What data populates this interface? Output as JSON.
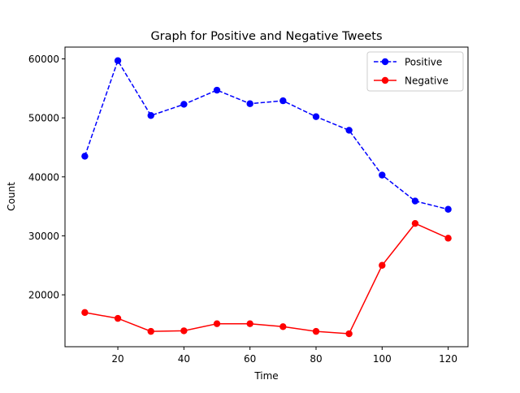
{
  "chart_data": {
    "type": "line",
    "title": "Graph for Positive and Negative Tweets",
    "xlabel": "Time",
    "ylabel": "Count",
    "xlim": [
      4,
      126
    ],
    "ylim": [
      11200,
      62000
    ],
    "xticks": [
      20,
      40,
      60,
      80,
      100,
      120
    ],
    "yticks": [
      20000,
      30000,
      40000,
      50000,
      60000
    ],
    "x": [
      10,
      20,
      30,
      40,
      50,
      60,
      70,
      80,
      90,
      100,
      110,
      120
    ],
    "grid": false,
    "legend_position": "top-right",
    "series": [
      {
        "name": "Positive",
        "color": "#0000ff",
        "line_style": "dashed",
        "marker": "circle",
        "values": [
          43500,
          59700,
          50400,
          52300,
          54700,
          52400,
          52900,
          50200,
          47900,
          40300,
          35900,
          34500
        ]
      },
      {
        "name": "Negative",
        "color": "#ff0000",
        "line_style": "solid",
        "marker": "circle",
        "values": [
          17000,
          16000,
          13800,
          13900,
          15100,
          15100,
          14600,
          13800,
          13400,
          25000,
          32100,
          29600
        ]
      }
    ]
  }
}
